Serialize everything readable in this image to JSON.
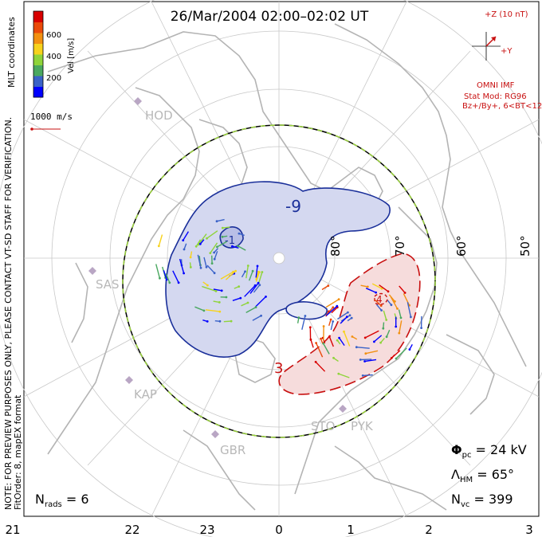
{
  "header": {
    "title": "26/Mar/2004 02:00–02:02 UT"
  },
  "colorbar": {
    "label": "Vel [m/s]",
    "ticks": [
      "600",
      "400",
      "200"
    ],
    "colors": [
      "#0000ff",
      "#3a62c8",
      "#4aa860",
      "#8fd43a",
      "#f7d21c",
      "#f29010",
      "#ea4a0a",
      "#d80000"
    ]
  },
  "coord_label": "MLT coordinates",
  "scale_label": "1000 m/s",
  "verification_note": "NOTE: FOR PREVIEW PURPOSES ONLY, PLEASE CONTACT VT-SD STAFF FOR VERIFICATION.",
  "fit_note": "FitOrder: 8, mapEX format",
  "imf": {
    "z_label": "+Z (10 nT)",
    "y_label": "+Y",
    "source": "OMNI IMF",
    "model_line1": "Stat Mod: RG96",
    "model_line2": "Bz+/By+, 6<BT<12"
  },
  "latitude_labels": [
    "80°",
    "70°",
    "60°",
    "50°"
  ],
  "contour_labels": [
    "-9",
    "-1",
    "3",
    "4"
  ],
  "stations": [
    "HOD",
    "SAS",
    "KAP",
    "GBR",
    "STO",
    "PYK"
  ],
  "stats": {
    "phi_symbol": "Φ",
    "phi_sub": "pc",
    "phi_value": " = 24 kV",
    "lambda_symbol": "Λ",
    "lambda_sub": "HM",
    "lambda_value": " = 65°",
    "nvc_symbol": "N",
    "nvc_sub": "vc",
    "nvc_value": " = 399",
    "nrads_symbol": "N",
    "nrads_sub": "rads",
    "nrads_value": " = 6"
  },
  "mlt_axis": [
    "21",
    "22",
    "23",
    "0",
    "1",
    "2",
    "3"
  ],
  "vectors": {
    "note": "velocity vectors shown as colored sticks; colors follow colorbar scale",
    "count_drawn": 120
  }
}
